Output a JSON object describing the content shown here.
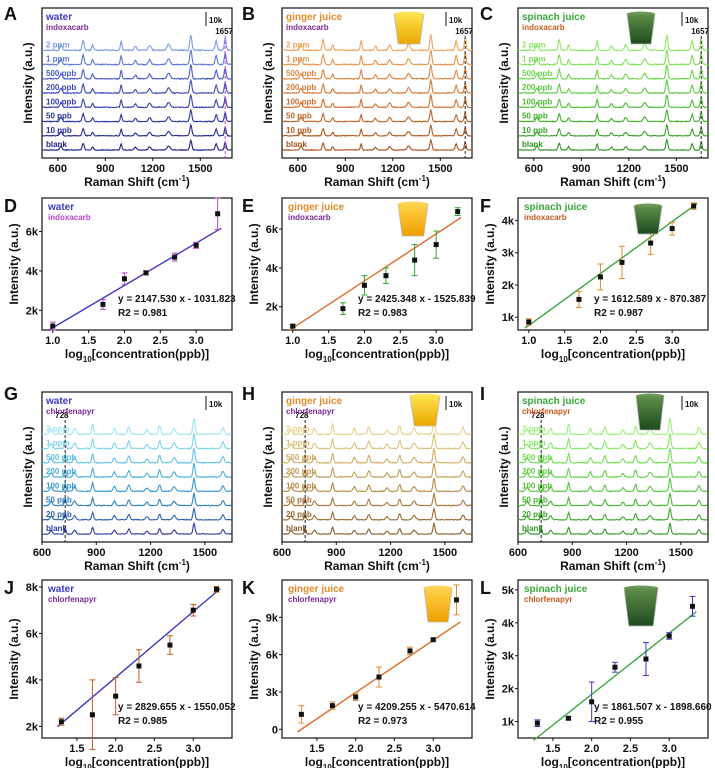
{
  "chart_data": [
    {
      "id": "A",
      "type": "line",
      "title": "water",
      "subtitle": "indoxacarb",
      "title_color": "#3b3bbd",
      "subtitle_color": "#7a2a9a",
      "xlabel": "Raman Shift (cm-1)",
      "ylabel": "Intensity (a.u.)",
      "xlim": [
        500,
        1700
      ],
      "xticks": [
        600,
        900,
        1200,
        1500
      ],
      "scalebar": "10k",
      "peak_label": "1657",
      "peak_x": 1657,
      "peak_color": "#c040d0",
      "series_labels": [
        "2 ppm",
        "1 ppm",
        "500 ppb",
        "200 ppb",
        "100 ppb",
        "50 ppb",
        "10 ppb",
        "blank"
      ],
      "series_colors": [
        "#7a9be6",
        "#5a78d8",
        "#4a5ccc",
        "#3e4bbd",
        "#3240ae",
        "#2a35a0",
        "#232b92",
        "#1c2284"
      ]
    },
    {
      "id": "B",
      "type": "line",
      "title": "ginger juice",
      "subtitle": "indoxacarb",
      "title_color": "#e08a2a",
      "subtitle_color": "#7a2a9a",
      "xlabel": "Raman Shift (cm-1)",
      "ylabel": "Intensity (a.u.)",
      "xlim": [
        500,
        1700
      ],
      "xticks": [
        600,
        900,
        1200,
        1500
      ],
      "scalebar": "10k",
      "peak_label": "1657",
      "peak_x": 1657,
      "peak_color": "#222",
      "series_labels": [
        "2 ppm",
        "1 ppm",
        "500 ppb",
        "200 ppb",
        "100 ppb",
        "50 ppb",
        "10 ppb",
        "blank"
      ],
      "series_colors": [
        "#f0a35a",
        "#e8944a",
        "#df863f",
        "#d67a35",
        "#cc6f2d",
        "#c06426",
        "#b45a20",
        "#a8501b"
      ]
    },
    {
      "id": "C",
      "type": "line",
      "title": "spinach juice",
      "subtitle": "indoxacarb",
      "title_color": "#3aa83a",
      "subtitle_color": "#c85a1a",
      "xlabel": "Raman Shift (cm-1)",
      "ylabel": "Intensity (a.u.)",
      "xlim": [
        500,
        1700
      ],
      "xticks": [
        600,
        900,
        1200,
        1500
      ],
      "scalebar": "10k",
      "peak_label": "1657",
      "peak_x": 1657,
      "peak_color": "#222",
      "series_labels": [
        "2 ppm",
        "1 ppm",
        "500 ppb",
        "200 ppb",
        "100 ppb",
        "50 ppb",
        "10 ppb",
        "blank"
      ],
      "series_colors": [
        "#8fe86a",
        "#7ee05a",
        "#6cd64c",
        "#5ccc40",
        "#4cc034",
        "#40b22c",
        "#36a426",
        "#2c9620"
      ]
    },
    {
      "id": "D",
      "type": "scatter",
      "title": "water",
      "subtitle": "indoxacarb",
      "title_color": "#3b3bbd",
      "subtitle_color": "#c040d0",
      "xlabel": "log10[concentration(ppb)]",
      "ylabel": "Intensity (a.u.)",
      "xlim": [
        0.85,
        3.5
      ],
      "ylim": [
        1000,
        7700
      ],
      "xticks": [
        1.0,
        1.5,
        2.0,
        2.5,
        3.0
      ],
      "yticks": [
        2000,
        4000,
        6000
      ],
      "ytick_labels": [
        "2k",
        "4k",
        "6k"
      ],
      "x": [
        1.0,
        1.7,
        2.0,
        2.3,
        2.7,
        3.0,
        3.3
      ],
      "y": [
        1200,
        2300,
        3600,
        3900,
        4700,
        5300,
        6900
      ],
      "err": [
        200,
        250,
        300,
        100,
        200,
        150,
        800
      ],
      "fit": {
        "slope": 2147.53,
        "intercept": -1031.823
      },
      "equation": "y = 2147.530 x - 1031.823",
      "r2": "R2 = 0.981",
      "line_color": "#3b3bbd",
      "err_color": "#c040d0"
    },
    {
      "id": "E",
      "type": "scatter",
      "title": "ginger juice",
      "subtitle": "indoxacarb",
      "title_color": "#e08a2a",
      "subtitle_color": "#7a2a9a",
      "xlabel": "log10[concentration(ppb)]",
      "ylabel": "Intensity (a.u.)",
      "xlim": [
        0.85,
        3.5
      ],
      "ylim": [
        800,
        7600
      ],
      "xticks": [
        1.0,
        1.5,
        2.0,
        2.5,
        3.0
      ],
      "yticks": [
        2000,
        4000,
        6000
      ],
      "ytick_labels": [
        "2k",
        "4k",
        "6k"
      ],
      "x": [
        1.0,
        1.7,
        2.0,
        2.3,
        2.7,
        3.0,
        3.3
      ],
      "y": [
        1000,
        1900,
        3100,
        3600,
        4400,
        5200,
        6900
      ],
      "err": [
        80,
        300,
        500,
        400,
        800,
        700,
        200
      ],
      "fit": {
        "slope": 2425.348,
        "intercept": -1525.839
      },
      "equation": "y = 2425.348 x - 1525.839",
      "r2": "R2 = 0.983",
      "line_color": "#e06a2a",
      "err_color": "#2ea82e"
    },
    {
      "id": "F",
      "type": "scatter",
      "title": "spinach juice",
      "subtitle": "indoxacarb",
      "title_color": "#3aa83a",
      "subtitle_color": "#c85a1a",
      "xlabel": "log10[concentration(ppb)]",
      "ylabel": "Intensity (a.u.)",
      "xlim": [
        0.85,
        3.5
      ],
      "ylim": [
        600,
        4700
      ],
      "xticks": [
        1.0,
        1.5,
        2.0,
        2.5,
        3.0
      ],
      "yticks": [
        1000,
        2000,
        3000,
        4000
      ],
      "ytick_labels": [
        "1k",
        "2k",
        "3k",
        "4k"
      ],
      "x": [
        1.0,
        1.7,
        2.0,
        2.3,
        2.7,
        3.0,
        3.3
      ],
      "y": [
        850,
        1550,
        2250,
        2700,
        3300,
        3750,
        4450
      ],
      "err": [
        100,
        250,
        400,
        500,
        350,
        200,
        100
      ],
      "fit": {
        "slope": 1612.589,
        "intercept": -870.387
      },
      "equation": "y = 1612.589 x - 870.387",
      "r2": "R2 = 0.987",
      "line_color": "#3aa83a",
      "err_color": "#e08a2a"
    },
    {
      "id": "G",
      "type": "line",
      "title": "water",
      "subtitle": "chlorfenapyr",
      "title_color": "#3b3bbd",
      "subtitle_color": "#7a2a9a",
      "xlabel": "Raman Shift (cm-1)",
      "ylabel": "Intensity (a.u.)",
      "xlim": [
        600,
        1650
      ],
      "xticks": [
        600,
        900,
        1200,
        1500
      ],
      "scalebar": "10k",
      "peak_label": "728",
      "peak_x": 728,
      "peak_color": "#222",
      "series_labels": [
        "2 ppm",
        "1 ppm",
        "500 ppb",
        "200 ppb",
        "100 ppb",
        "50 ppb",
        "20 ppb",
        "blank"
      ],
      "series_colors": [
        "#9fe4f4",
        "#7fd4ec",
        "#62c2e4",
        "#4aaedb",
        "#3898d0",
        "#2c80c2",
        "#2a5fb0",
        "#2a3c9c"
      ]
    },
    {
      "id": "H",
      "type": "line",
      "title": "ginger juice",
      "subtitle": "chlorfenapyr",
      "title_color": "#e08a2a",
      "subtitle_color": "#7a2a9a",
      "xlabel": "Raman Shift (cm-1)",
      "ylabel": "Intensity (a.u.)",
      "xlim": [
        600,
        1650
      ],
      "xticks": [
        600,
        900,
        1200,
        1500
      ],
      "scalebar": "10k",
      "peak_label": "728",
      "peak_x": 728,
      "peak_color": "#222",
      "series_labels": [
        "2 ppm",
        "1 ppm",
        "500 ppb",
        "200 ppb",
        "100 ppb",
        "50 ppb",
        "20 ppb",
        "blank"
      ],
      "series_colors": [
        "#e8d08a",
        "#dcc07a",
        "#d0ae66",
        "#c49c56",
        "#b88a48",
        "#a8783c",
        "#9a6a34",
        "#8a5c2c"
      ]
    },
    {
      "id": "I",
      "type": "line",
      "title": "spinach juice",
      "subtitle": "chlorfenapyr",
      "title_color": "#3aa83a",
      "subtitle_color": "#c85a1a",
      "xlabel": "Raman Shift (cm-1)",
      "ylabel": "Intensity (a.u.)",
      "xlim": [
        600,
        1650
      ],
      "xticks": [
        600,
        900,
        1200,
        1500
      ],
      "scalebar": "10k",
      "peak_label": "728",
      "peak_x": 728,
      "peak_color": "#222",
      "series_labels": [
        "2 ppm",
        "1 ppm",
        "500 ppb",
        "200 ppb",
        "100 ppb",
        "50 ppb",
        "20 ppb",
        "blank"
      ],
      "series_colors": [
        "#9cf07a",
        "#86e866",
        "#72de56",
        "#62d248",
        "#54c63c",
        "#46b832",
        "#3aa82a",
        "#2e9822"
      ]
    },
    {
      "id": "J",
      "type": "scatter",
      "title": "water",
      "subtitle": "chlorfenapyr",
      "title_color": "#3b3bbd",
      "subtitle_color": "#7a2a9a",
      "xlabel": "log10[concentration(ppb)]",
      "ylabel": "Intensity (a.u.)",
      "xlim": [
        1.05,
        3.5
      ],
      "ylim": [
        1500,
        8300
      ],
      "xticks": [
        1.5,
        2.0,
        2.5,
        3.0
      ],
      "yticks": [
        2000,
        4000,
        6000,
        8000
      ],
      "ytick_labels": [
        "2k",
        "4k",
        "6k",
        "8k"
      ],
      "x": [
        1.3,
        1.7,
        2.0,
        2.3,
        2.7,
        3.0,
        3.3
      ],
      "y": [
        2200,
        2500,
        3300,
        4600,
        5500,
        7000,
        7900
      ],
      "err": [
        150,
        1500,
        800,
        700,
        400,
        250,
        120
      ],
      "fit": {
        "slope": 2829.655,
        "intercept": -1550.052
      },
      "equation": "y = 2829.655 x - 1550.052",
      "r2": "R2 = 0.985",
      "line_color": "#3b3bbd",
      "err_color": "#c85a1a"
    },
    {
      "id": "K",
      "type": "scatter",
      "title": "ginger juice",
      "subtitle": "chlorfenapyr",
      "title_color": "#e08a2a",
      "subtitle_color": "#7a2a9a",
      "xlabel": "log10[concentration(ppb)]",
      "ylabel": "Intensity (a.u.)",
      "xlim": [
        1.05,
        3.5
      ],
      "ylim": [
        -700,
        12000
      ],
      "xticks": [
        1.5,
        2.0,
        2.5,
        3.0
      ],
      "yticks": [
        0,
        3000,
        6000,
        9000
      ],
      "ytick_labels": [
        "0",
        "3k",
        "6k",
        "9k"
      ],
      "x": [
        1.3,
        1.7,
        2.0,
        2.3,
        2.7,
        3.0,
        3.3
      ],
      "y": [
        1200,
        1900,
        2600,
        4200,
        6300,
        7200,
        10400
      ],
      "err": [
        700,
        300,
        300,
        800,
        300,
        100,
        1200
      ],
      "fit": {
        "slope": 4209.255,
        "intercept": -5470.614
      },
      "equation": "y = 4209.255 x - 5470.614",
      "r2": "R2 = 0.973",
      "line_color": "#e06a2a",
      "err_color": "#e08a2a"
    },
    {
      "id": "L",
      "type": "scatter",
      "title": "spinach juice",
      "subtitle": "chlorfenapyr",
      "title_color": "#3aa83a",
      "subtitle_color": "#c85a1a",
      "xlabel": "log10[concentration(ppb)]",
      "ylabel": "Intensity (a.u.)",
      "xlim": [
        1.05,
        3.5
      ],
      "ylim": [
        500,
        5300
      ],
      "xticks": [
        1.5,
        2.0,
        2.5,
        3.0
      ],
      "yticks": [
        1000,
        2000,
        3000,
        4000,
        5000
      ],
      "ytick_labels": [
        "1k",
        "2k",
        "3k",
        "4k",
        "5k"
      ],
      "x": [
        1.3,
        1.7,
        2.0,
        2.3,
        2.7,
        3.0,
        3.3
      ],
      "y": [
        950,
        1100,
        1600,
        2650,
        2900,
        3600,
        4500
      ],
      "err": [
        100,
        50,
        600,
        150,
        500,
        100,
        300
      ],
      "fit": {
        "slope": 1861.507,
        "intercept": -1898.66
      },
      "equation": "y = 1861.507 x - 1898.660",
      "r2": "R2 = 0.955",
      "line_color": "#3aa83a",
      "err_color": "#3b3bbd"
    }
  ]
}
